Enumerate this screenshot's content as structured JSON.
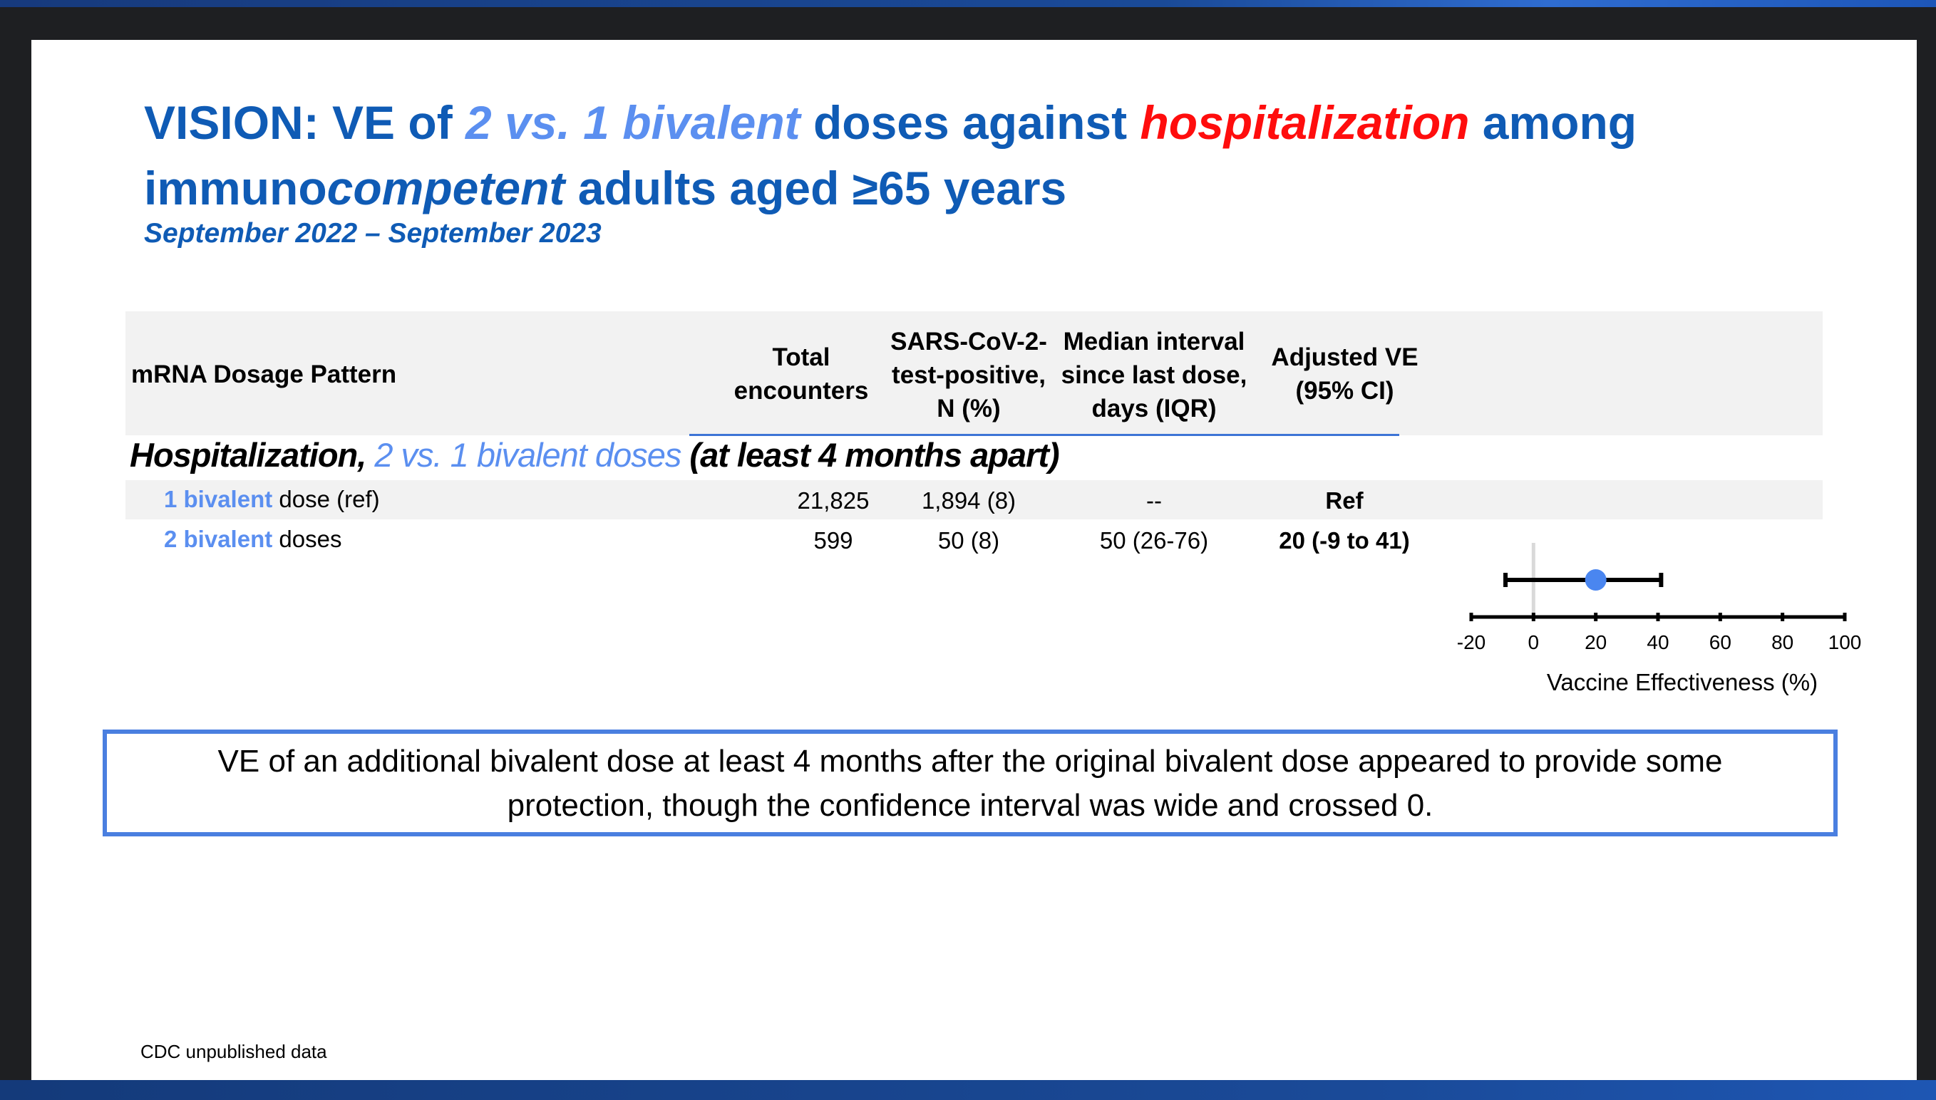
{
  "title": {
    "part1": "VISION: VE of ",
    "part2": "2 vs. 1 bivalent",
    "part3": " doses against ",
    "part4": "hospitalization",
    "part5": " among",
    "part6": "immuno",
    "part7": "competent",
    "part8": " adults aged ≥65 years"
  },
  "subtitle": "September 2022 – September 2023",
  "table": {
    "headers": {
      "pattern": "mRNA Dosage Pattern",
      "total": [
        "Total",
        "encounters"
      ],
      "positive": [
        "SARS-CoV-2-",
        "test-positive,",
        "N (%)"
      ],
      "median": [
        "Median interval",
        "since last dose,",
        "days (IQR)"
      ],
      "ve": [
        "Adjusted VE",
        "(95% CI)"
      ]
    },
    "section": {
      "part1": "Hospitalization, ",
      "part2": "2 vs. 1 bivalent doses",
      "part3": " (at least 4 months apart)"
    },
    "rows": [
      {
        "label_highlight": "1 bivalent",
        "label_rest": " dose (ref)",
        "total": "21,825",
        "positive": "1,894 (8)",
        "median": "--",
        "ve": "Ref"
      },
      {
        "label_highlight": "2 bivalent",
        "label_rest": " doses",
        "total": "599",
        "positive": "50 (8)",
        "median": "50 (26-76)",
        "ve": "20 (-9 to 41)"
      }
    ]
  },
  "chart_data": {
    "type": "scatter",
    "xlabel": "Vaccine Effectiveness (%)",
    "xlim": [
      -20,
      100
    ],
    "x_ticks": [
      "-20",
      "0",
      "20",
      "40",
      "60",
      "80",
      "100"
    ],
    "points": [
      {
        "row": "2 bivalent doses",
        "estimate": 20,
        "ci_low": -9,
        "ci_high": 41
      }
    ],
    "reference_line_x": 0,
    "marker_color": "#4a86f0"
  },
  "callout": {
    "line1": "VE of an additional bivalent dose at least 4 months after the original bivalent dose appeared to provide some",
    "line2": "protection, though the confidence interval was wide and crossed 0."
  },
  "footnote": "CDC unpublished  data"
}
